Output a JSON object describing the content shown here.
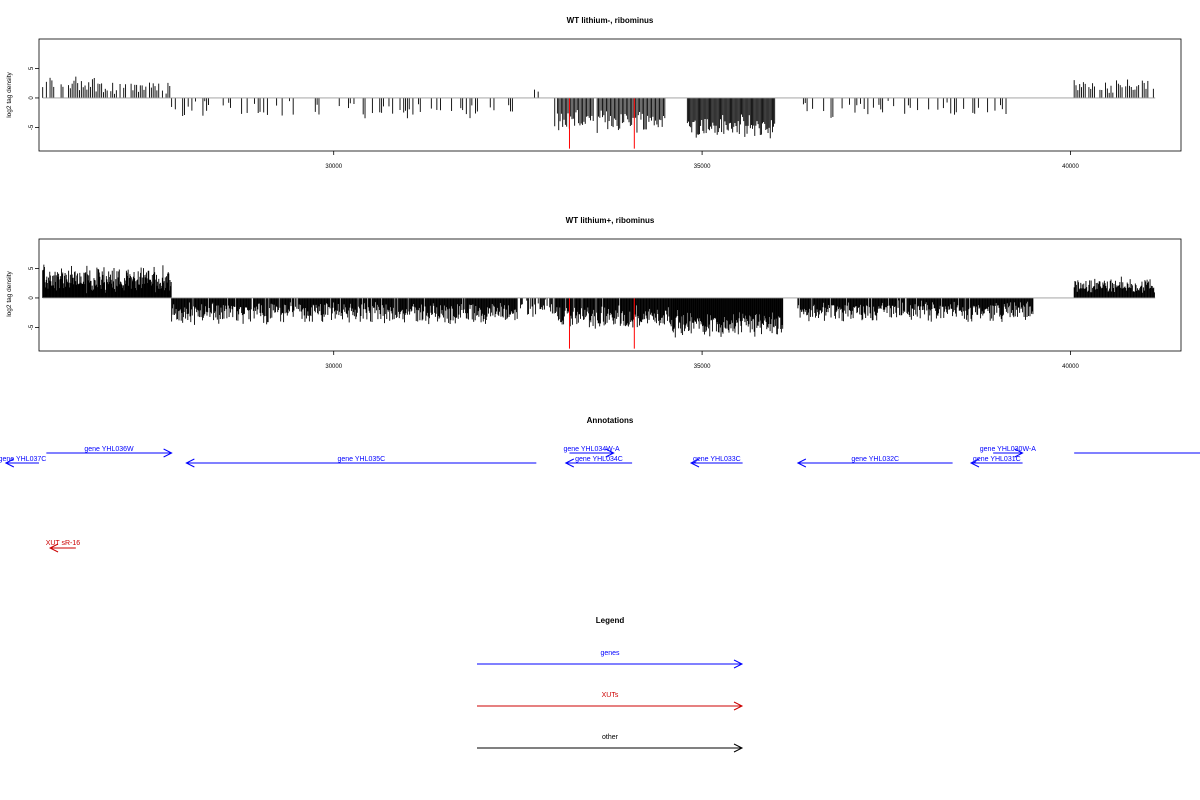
{
  "chart_data": [
    {
      "type": "bar",
      "title": "WT lithium-, ribominus",
      "ylabel": "log2 tag density",
      "xlim": [
        26000,
        41500
      ],
      "ylim": [
        -9,
        10
      ],
      "xticks": [
        30000,
        35000,
        40000
      ],
      "yticks": [
        -5,
        0,
        5
      ],
      "baseline": 0,
      "segments": [
        {
          "start": 26050,
          "end": 26900,
          "level": 2.4,
          "jitter": 1.3,
          "density": 0.75,
          "step": 25
        },
        {
          "start": 26900,
          "end": 27800,
          "level": 1.8,
          "jitter": 1.0,
          "density": 0.7,
          "step": 25
        },
        {
          "start": 27800,
          "end": 32500,
          "level": -2.0,
          "jitter": 1.2,
          "density": 0.4,
          "step": 25
        },
        {
          "start": 32700,
          "end": 32800,
          "level": 1.2,
          "jitter": 0.5,
          "density": 0.5,
          "step": 25
        },
        {
          "start": 33000,
          "end": 34500,
          "level": -3.8,
          "jitter": 1.6,
          "density": 0.95,
          "step": 18
        },
        {
          "start": 34800,
          "end": 36000,
          "level": -5.0,
          "jitter": 1.8,
          "density": 1.0,
          "step": 15
        },
        {
          "start": 36300,
          "end": 39200,
          "level": -1.9,
          "jitter": 1.1,
          "density": 0.35,
          "step": 25
        },
        {
          "start": 40050,
          "end": 41150,
          "level": 2.0,
          "jitter": 1.0,
          "density": 0.8,
          "step": 25
        }
      ],
      "highlights": [
        {
          "x": 33200,
          "y": -8.6,
          "color": "#ff0000"
        },
        {
          "x": 34080,
          "y": -8.6,
          "color": "#ff0000"
        }
      ]
    },
    {
      "type": "bar",
      "title": "WT lithium+, ribominus",
      "ylabel": "log2 tag density",
      "xlim": [
        26000,
        41500
      ],
      "ylim": [
        -9,
        10
      ],
      "xticks": [
        30000,
        35000,
        40000
      ],
      "yticks": [
        -5,
        0,
        5
      ],
      "baseline": 0,
      "segments": [
        {
          "start": 26050,
          "end": 27800,
          "level": 3.2,
          "jitter": 1.8,
          "density": 1.0,
          "step": 8
        },
        {
          "start": 27800,
          "end": 32500,
          "level": -2.6,
          "jitter": 1.5,
          "density": 0.95,
          "step": 10
        },
        {
          "start": 32500,
          "end": 33000,
          "level": -1.8,
          "jitter": 1.2,
          "density": 0.6,
          "step": 12
        },
        {
          "start": 33000,
          "end": 34600,
          "level": -3.2,
          "jitter": 1.6,
          "density": 0.95,
          "step": 10
        },
        {
          "start": 34600,
          "end": 36100,
          "level": -4.4,
          "jitter": 1.8,
          "density": 1.0,
          "step": 9
        },
        {
          "start": 36300,
          "end": 39500,
          "level": -2.2,
          "jitter": 1.4,
          "density": 0.95,
          "step": 10
        },
        {
          "start": 40050,
          "end": 41150,
          "level": 2.1,
          "jitter": 1.1,
          "density": 1.0,
          "step": 10
        }
      ],
      "highlights": [
        {
          "x": 33200,
          "y": -8.6,
          "color": "#ff0000"
        },
        {
          "x": 34080,
          "y": -8.6,
          "color": "#ff0000"
        }
      ]
    }
  ],
  "annotations": {
    "title": "Annotations",
    "genes": [
      {
        "label": "gene YHL037C",
        "start": 26000,
        "end": 25550,
        "row": 1
      },
      {
        "label": "gene YHL036W",
        "start": 26100,
        "end": 27800,
        "row": 0
      },
      {
        "label": "gene YHL035C",
        "start": 32750,
        "end": 28000,
        "row": 1
      },
      {
        "label": "gene YHL034W-A",
        "start": 33200,
        "end": 33800,
        "row": 0
      },
      {
        "label": "gene YHL034C",
        "start": 34050,
        "end": 33150,
        "row": 1
      },
      {
        "label": "gene YHL033C",
        "start": 35550,
        "end": 34850,
        "row": 1
      },
      {
        "label": "gene YHL032C",
        "start": 38400,
        "end": 36300,
        "row": 1
      },
      {
        "label": "gene YHL031C",
        "start": 39350,
        "end": 38650,
        "row": 1
      },
      {
        "label": "gene YHL030W-A",
        "start": 38950,
        "end": 39350,
        "row": 0
      },
      {
        "label": "",
        "start": 40050,
        "end": 41800,
        "row": 0,
        "noarrow": true
      }
    ],
    "xuts": [
      {
        "label": "XUT sR-16",
        "start": 26500,
        "end": 26150
      }
    ]
  },
  "legend": {
    "title": "Legend",
    "items": [
      {
        "label": "genes",
        "color": "#0000ff"
      },
      {
        "label": "XUTs",
        "color": "#cc0000"
      },
      {
        "label": "other",
        "color": "#000000"
      }
    ]
  }
}
